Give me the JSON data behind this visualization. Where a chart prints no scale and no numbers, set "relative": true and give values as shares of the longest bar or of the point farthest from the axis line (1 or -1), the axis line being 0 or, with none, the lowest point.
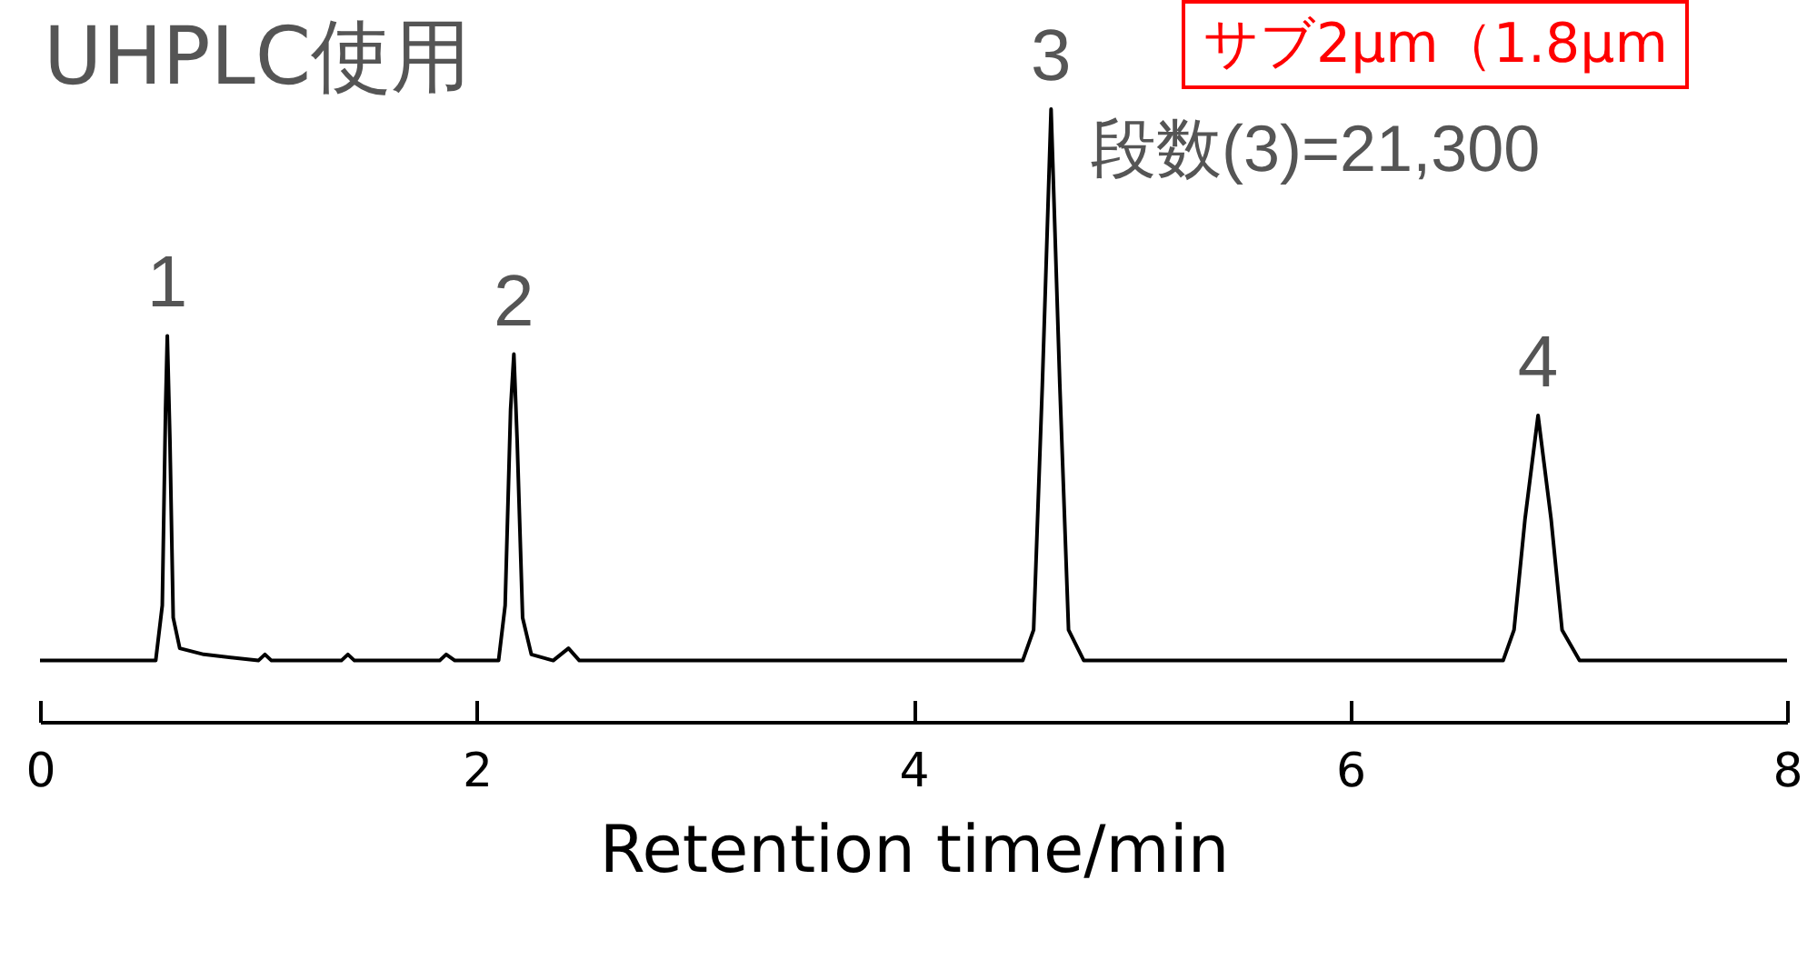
{
  "chart_data": {
    "type": "line",
    "title": "UHPLC使用",
    "xlabel": "Retention time/min",
    "relative": true,
    "xlim": [
      0,
      8
    ],
    "xticks": [
      0,
      2,
      4,
      6,
      8
    ],
    "line_style": "solid",
    "x": [
      0,
      0.53,
      0.56,
      0.575,
      0.583,
      0.595,
      0.61,
      0.64,
      0.75,
      1.0,
      1.03,
      1.06,
      1.38,
      1.41,
      1.44,
      1.83,
      1.86,
      1.9,
      2.1,
      2.13,
      2.155,
      2.17,
      2.185,
      2.21,
      2.25,
      2.35,
      2.42,
      2.47,
      4.5,
      4.55,
      4.59,
      4.63,
      4.67,
      4.71,
      4.78,
      6.7,
      6.75,
      6.8,
      6.86,
      6.92,
      6.97,
      7.05,
      8
    ],
    "series": [
      {
        "color": "#000000",
        "values": [
          0.1,
          0.1,
          0.19,
          0.51,
          0.63,
          0.46,
          0.17,
          0.12,
          0.11,
          0.1,
          0.11,
          0.1,
          0.1,
          0.11,
          0.1,
          0.1,
          0.11,
          0.1,
          0.1,
          0.19,
          0.51,
          0.6,
          0.46,
          0.17,
          0.11,
          0.1,
          0.12,
          0.1,
          0.1,
          0.15,
          0.55,
          1,
          0.55,
          0.15,
          0.1,
          0.1,
          0.15,
          0.33,
          0.5,
          0.33,
          0.15,
          0.1,
          0.1
        ]
      }
    ],
    "annotations": [
      {
        "text": "1",
        "x": 0.583,
        "y": 0.63
      },
      {
        "text": "2",
        "x": 2.17,
        "y": 0.6
      },
      {
        "text": "3",
        "x": 4.63,
        "y": 1
      },
      {
        "text": "4",
        "x": 6.86,
        "y": 0.5
      },
      "サブ2μm（1.8μm",
      "段数(3)=21,300"
    ]
  }
}
